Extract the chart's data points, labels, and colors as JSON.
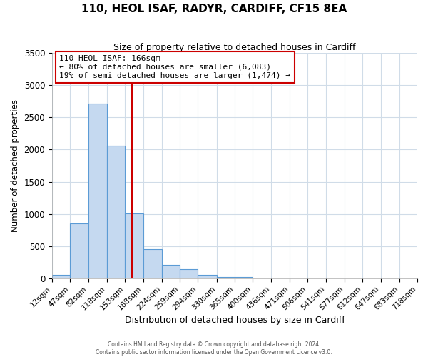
{
  "title": "110, HEOL ISAF, RADYR, CARDIFF, CF15 8EA",
  "subtitle": "Size of property relative to detached houses in Cardiff",
  "xlabel": "Distribution of detached houses by size in Cardiff",
  "ylabel": "Number of detached properties",
  "bar_heights": [
    55,
    850,
    2720,
    2060,
    1005,
    455,
    205,
    145,
    55,
    25,
    20,
    0,
    0,
    0,
    0,
    0,
    0,
    0,
    0,
    0
  ],
  "bin_edges": [
    12,
    47,
    82,
    118,
    153,
    188,
    224,
    259,
    294,
    330,
    365,
    400,
    436,
    471,
    506,
    541,
    577,
    612,
    647,
    683,
    718
  ],
  "tick_labels": [
    "12sqm",
    "47sqm",
    "82sqm",
    "118sqm",
    "153sqm",
    "188sqm",
    "224sqm",
    "259sqm",
    "294sqm",
    "330sqm",
    "365sqm",
    "400sqm",
    "436sqm",
    "471sqm",
    "506sqm",
    "541sqm",
    "577sqm",
    "612sqm",
    "647sqm",
    "683sqm",
    "718sqm"
  ],
  "bar_color": "#c5d9f0",
  "bar_edge_color": "#5b9bd5",
  "vline_x": 166,
  "vline_color": "#cc0000",
  "annotation_box_color": "#cc0000",
  "annotation_text_line1": "110 HEOL ISAF: 166sqm",
  "annotation_text_line2": "← 80% of detached houses are smaller (6,083)",
  "annotation_text_line3": "19% of semi-detached houses are larger (1,474) →",
  "ylim": [
    0,
    3500
  ],
  "yticks": [
    0,
    500,
    1000,
    1500,
    2000,
    2500,
    3000,
    3500
  ],
  "footer_line1": "Contains HM Land Registry data © Crown copyright and database right 2024.",
  "footer_line2": "Contains public sector information licensed under the Open Government Licence v3.0.",
  "background_color": "#ffffff",
  "grid_color": "#d0dce8",
  "title_fontsize": 11,
  "subtitle_fontsize": 9
}
